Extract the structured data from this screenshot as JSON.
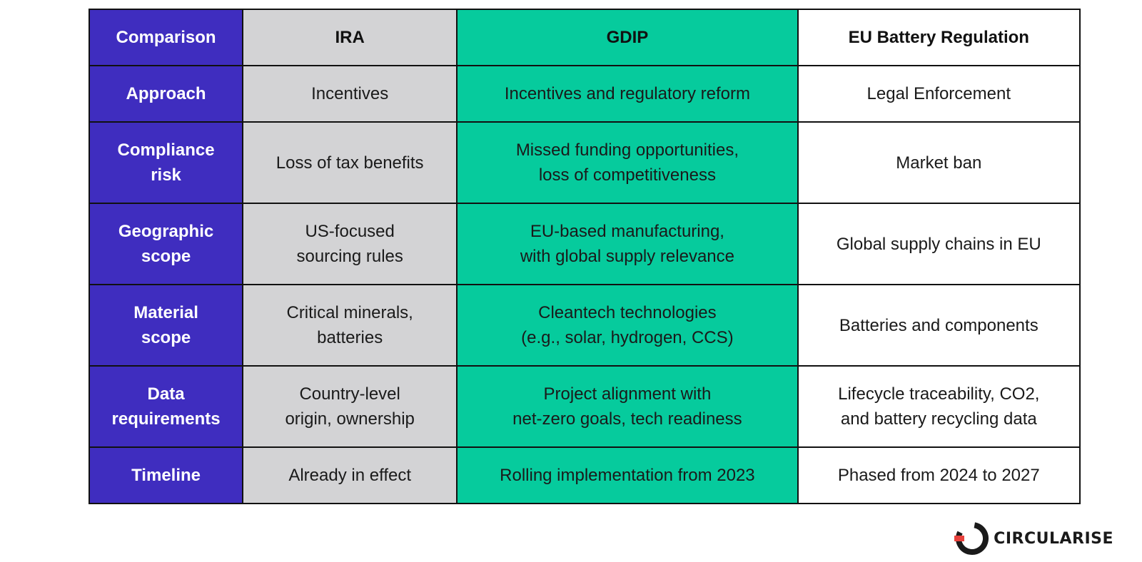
{
  "table": {
    "headers": [
      "Comparison",
      "IRA",
      "GDIP",
      "EU Battery Regulation"
    ],
    "rows": [
      {
        "label": "Approach",
        "cells": [
          "Incentives",
          "Incentives and regulatory reform",
          "Legal Enforcement"
        ]
      },
      {
        "label": "Compliance\nrisk",
        "cells": [
          "Loss of tax benefits",
          "Missed funding opportunities,\nloss of competitiveness",
          "Market ban"
        ]
      },
      {
        "label": "Geographic\nscope",
        "cells": [
          "US-focused\nsourcing rules",
          "EU-based manufacturing,\nwith global supply relevance",
          "Global supply chains in EU"
        ]
      },
      {
        "label": "Material\nscope",
        "cells": [
          "Critical minerals,\nbatteries",
          "Cleantech technologies\n(e.g., solar, hydrogen, CCS)",
          "Batteries and components"
        ]
      },
      {
        "label": "Data\nrequirements",
        "cells": [
          "Country-level\norigin, ownership",
          "Project alignment with\nnet-zero goals, tech readiness",
          "Lifecycle traceability, CO2,\nand battery recycling data"
        ]
      },
      {
        "label": "Timeline",
        "cells": [
          "Already in effect",
          "Rolling implementation from 2023",
          "Phased from 2024 to 2027"
        ]
      }
    ]
  },
  "logo": {
    "text": "CIRCULARISE",
    "icon": "circularise-logo-icon"
  },
  "colors": {
    "row_header": "#3f2dbf",
    "ira": "#d3d3d5",
    "gdip": "#06cb9d",
    "eu": "#ffffff",
    "logo_accent": "#e8413c"
  }
}
